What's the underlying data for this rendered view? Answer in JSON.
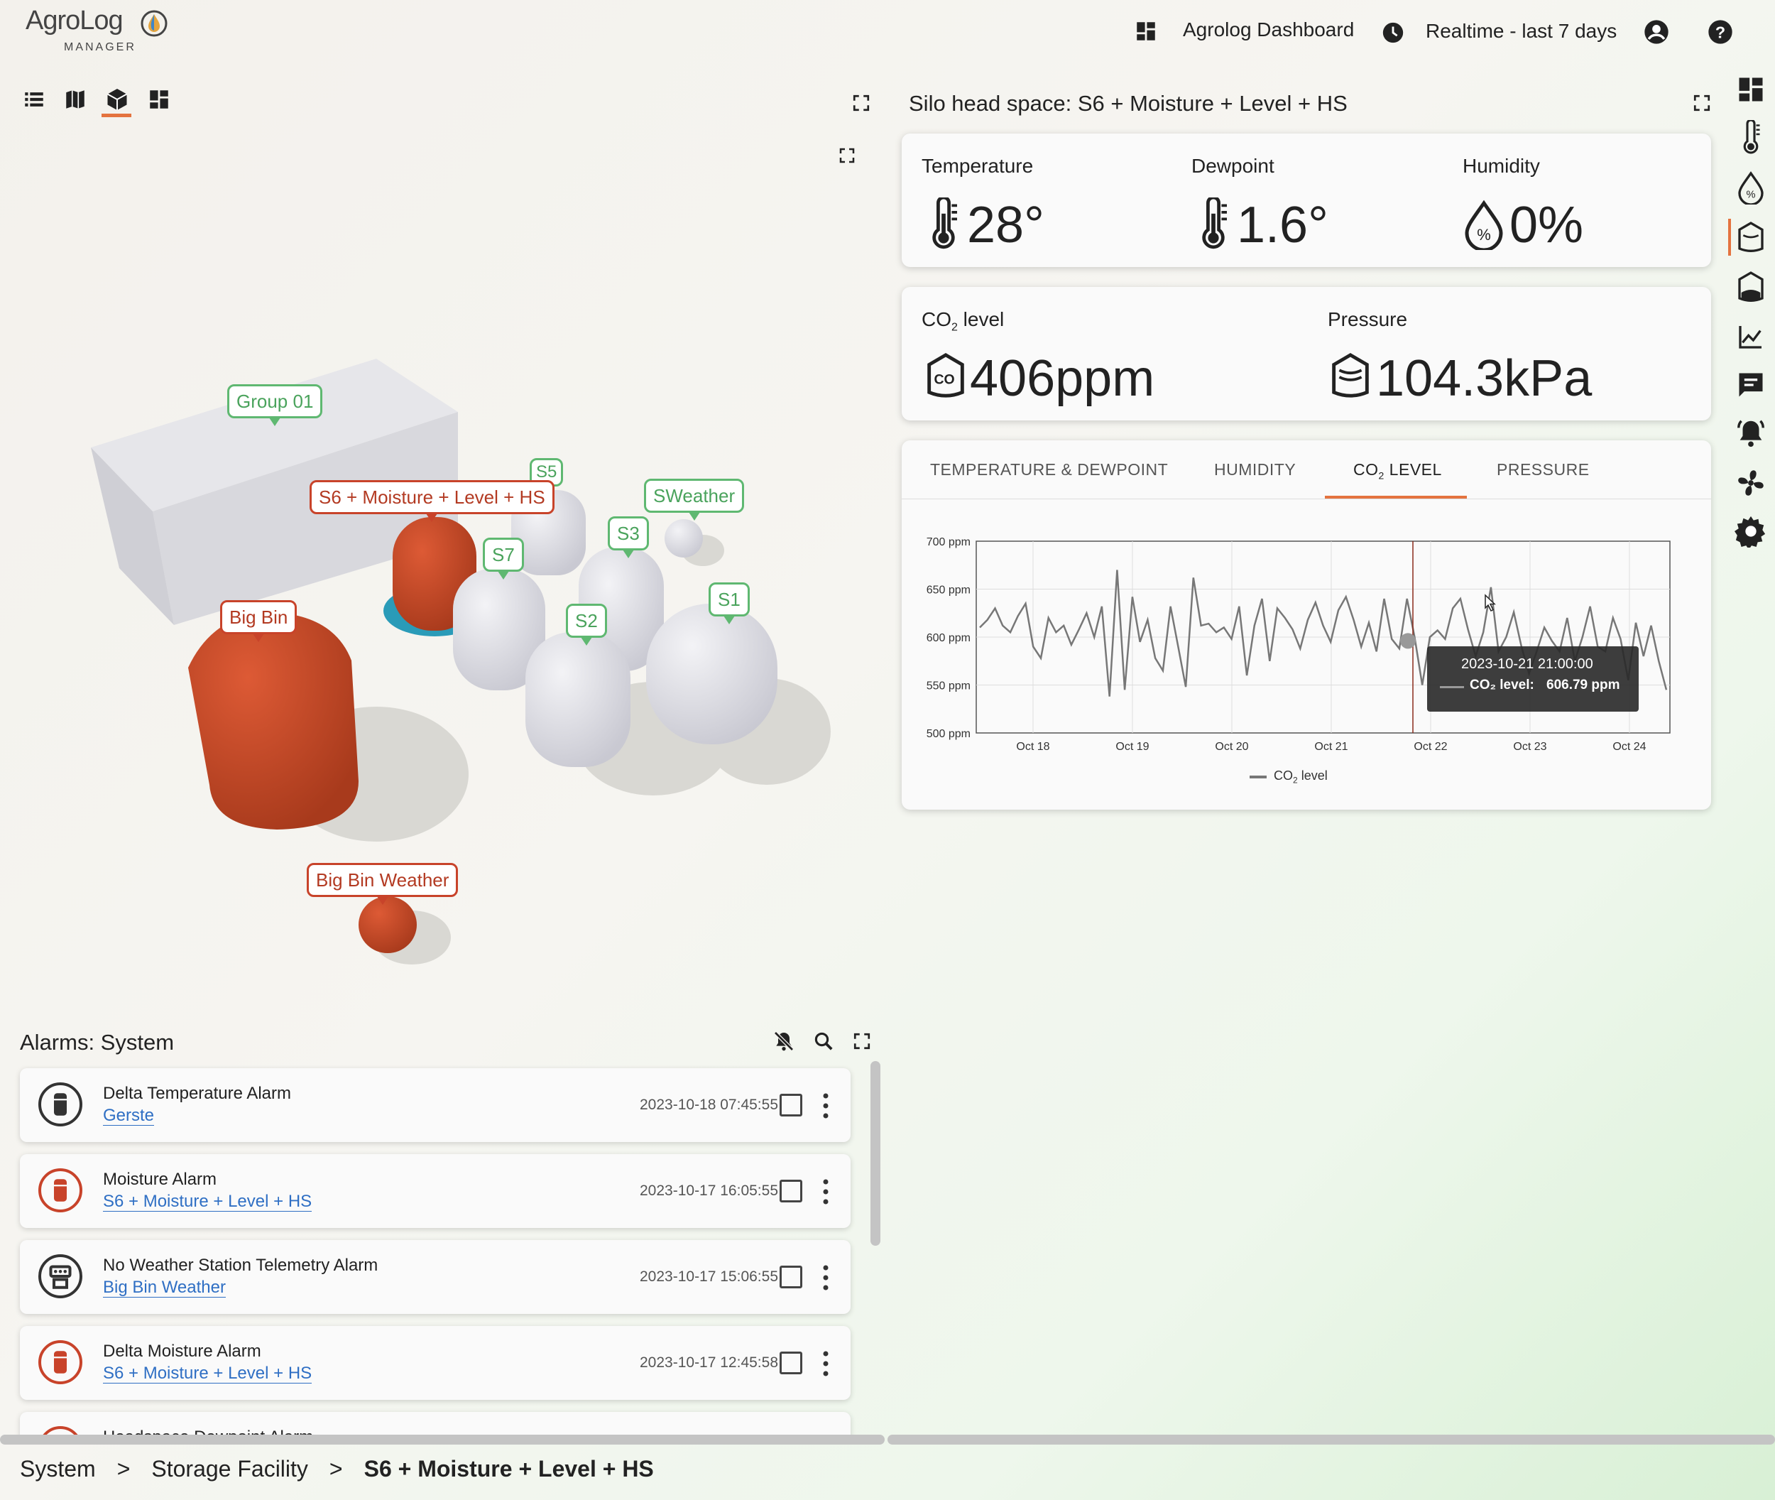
{
  "app": {
    "logo_text": "AgroLog",
    "logo_sub": "MANAGER"
  },
  "header": {
    "dashboard_label": "Agrolog Dashboard",
    "timewindow_label": "Realtime - last 7 days"
  },
  "scene": {
    "tags": [
      {
        "id": "group01",
        "label": "Group 01",
        "state": "normal"
      },
      {
        "id": "s5",
        "label": "S5",
        "state": "normal"
      },
      {
        "id": "s6",
        "label": "S6 + Moisture + Level + HS",
        "state": "alarm"
      },
      {
        "id": "sweather",
        "label": "SWeather",
        "state": "normal"
      },
      {
        "id": "s3",
        "label": "S3",
        "state": "normal"
      },
      {
        "id": "s7",
        "label": "S7",
        "state": "normal"
      },
      {
        "id": "s1",
        "label": "S1",
        "state": "normal"
      },
      {
        "id": "s2",
        "label": "S2",
        "state": "normal"
      },
      {
        "id": "bigbin",
        "label": "Big Bin",
        "state": "alarm"
      },
      {
        "id": "bigbinweather",
        "label": "Big Bin Weather",
        "state": "alarm"
      }
    ]
  },
  "panel": {
    "title": "Silo head space: S6 + Moisture + Level + HS",
    "temperature": {
      "label": "Temperature",
      "value": "28°"
    },
    "dewpoint": {
      "label": "Dewpoint",
      "value": "1.6°"
    },
    "humidity": {
      "label": "Humidity",
      "value": "0%"
    },
    "co2": {
      "label_main": "CO",
      "label_sub": "2",
      "label_rest": " level",
      "value": "406ppm"
    },
    "pressure": {
      "label": "Pressure",
      "value": "104.3kPa"
    },
    "tabs": [
      {
        "label": "TEMPERATURE & DEWPOINT",
        "active": false
      },
      {
        "label": "HUMIDITY",
        "active": false
      },
      {
        "label_main": "CO",
        "label_sub": "2",
        "label_rest": " LEVEL",
        "active": true
      },
      {
        "label": "PRESSURE",
        "active": false
      }
    ]
  },
  "chart_data": {
    "type": "line",
    "ylabel_ticks": [
      "700 ppm",
      "650 ppm",
      "600 ppm",
      "550 ppm",
      "500 ppm"
    ],
    "ylim": [
      500,
      700
    ],
    "x_ticks": [
      "Oct 18",
      "Oct 19",
      "Oct 20",
      "Oct 21",
      "Oct 22",
      "Oct 23",
      "Oct 24"
    ],
    "grid": true,
    "legend_position": "bottom",
    "series": [
      {
        "name": "CO₂ level",
        "color": "#777777",
        "values": [
          610,
          618,
          630,
          612,
          605,
          622,
          635,
          590,
          578,
          620,
          605,
          612,
          592,
          608,
          625,
          600,
          632,
          538,
          670,
          545,
          642,
          595,
          618,
          578,
          565,
          632,
          590,
          548,
          662,
          612,
          614,
          605,
          610,
          598,
          632,
          560,
          612,
          640,
          575,
          630,
          620,
          608,
          588,
          618,
          636,
          612,
          595,
          628,
          642,
          618,
          590,
          615,
          585,
          640,
          598,
          588,
          640,
          600,
          550,
          600,
          607,
          598,
          630,
          640,
          608,
          580,
          605,
          652,
          585,
          600,
          626,
          590,
          562,
          585,
          610,
          596,
          585,
          620,
          575,
          600,
          632,
          590,
          585,
          620,
          598,
          555,
          615,
          580,
          612,
          575,
          545
        ]
      }
    ],
    "tooltip": {
      "date": "2023-10-21 21:00:00",
      "series_label": "CO₂ level:",
      "value": "606.79 ppm"
    }
  },
  "chart_legend": {
    "label_main": "CO",
    "label_sub": "2",
    "label_rest": " level"
  },
  "alarms": {
    "title": "Alarms: System",
    "items": [
      {
        "title": "Delta Temperature Alarm",
        "source": "Gerste",
        "time": "2023-10-18 07:45:55",
        "severity": "normal"
      },
      {
        "title": "Moisture Alarm",
        "source": "S6 + Moisture + Level + HS",
        "time": "2023-10-17 16:05:55",
        "severity": "alarm"
      },
      {
        "title": "No Weather Station Telemetry Alarm",
        "source": "Big Bin Weather",
        "time": "2023-10-17 15:06:55",
        "severity": "normal"
      },
      {
        "title": "Delta Moisture Alarm",
        "source": "S6 + Moisture + Level + HS",
        "time": "2023-10-17 12:45:58",
        "severity": "alarm"
      },
      {
        "title": "Headspace Dewpoint Alarm",
        "source": "",
        "time": "",
        "severity": "alarm"
      }
    ]
  },
  "breadcrumb": {
    "items": [
      "System",
      "Storage Facility",
      "S6 + Moisture + Level + HS"
    ],
    "separator": ">"
  },
  "colors": {
    "accent": "#e4733f",
    "alarm": "#c8432a",
    "ok": "#5fb871",
    "link": "#2f6fc4"
  },
  "icons": [
    "dashboard-icon",
    "clock-icon",
    "account-circle-icon",
    "help-icon",
    "list-view-icon",
    "map-view-icon",
    "cube-3d-view-icon",
    "grid-view-icon",
    "fullscreen-icon",
    "thermometer-icon",
    "humidity-drop-icon",
    "co2-icon",
    "pressure-icon",
    "notifications-off-icon",
    "search-icon",
    "more-vert-icon",
    "silo-icon",
    "weather-station-icon",
    "line-chart-icon",
    "message-icon",
    "alarm-bell-icon",
    "fan-icon",
    "gear-icon"
  ]
}
